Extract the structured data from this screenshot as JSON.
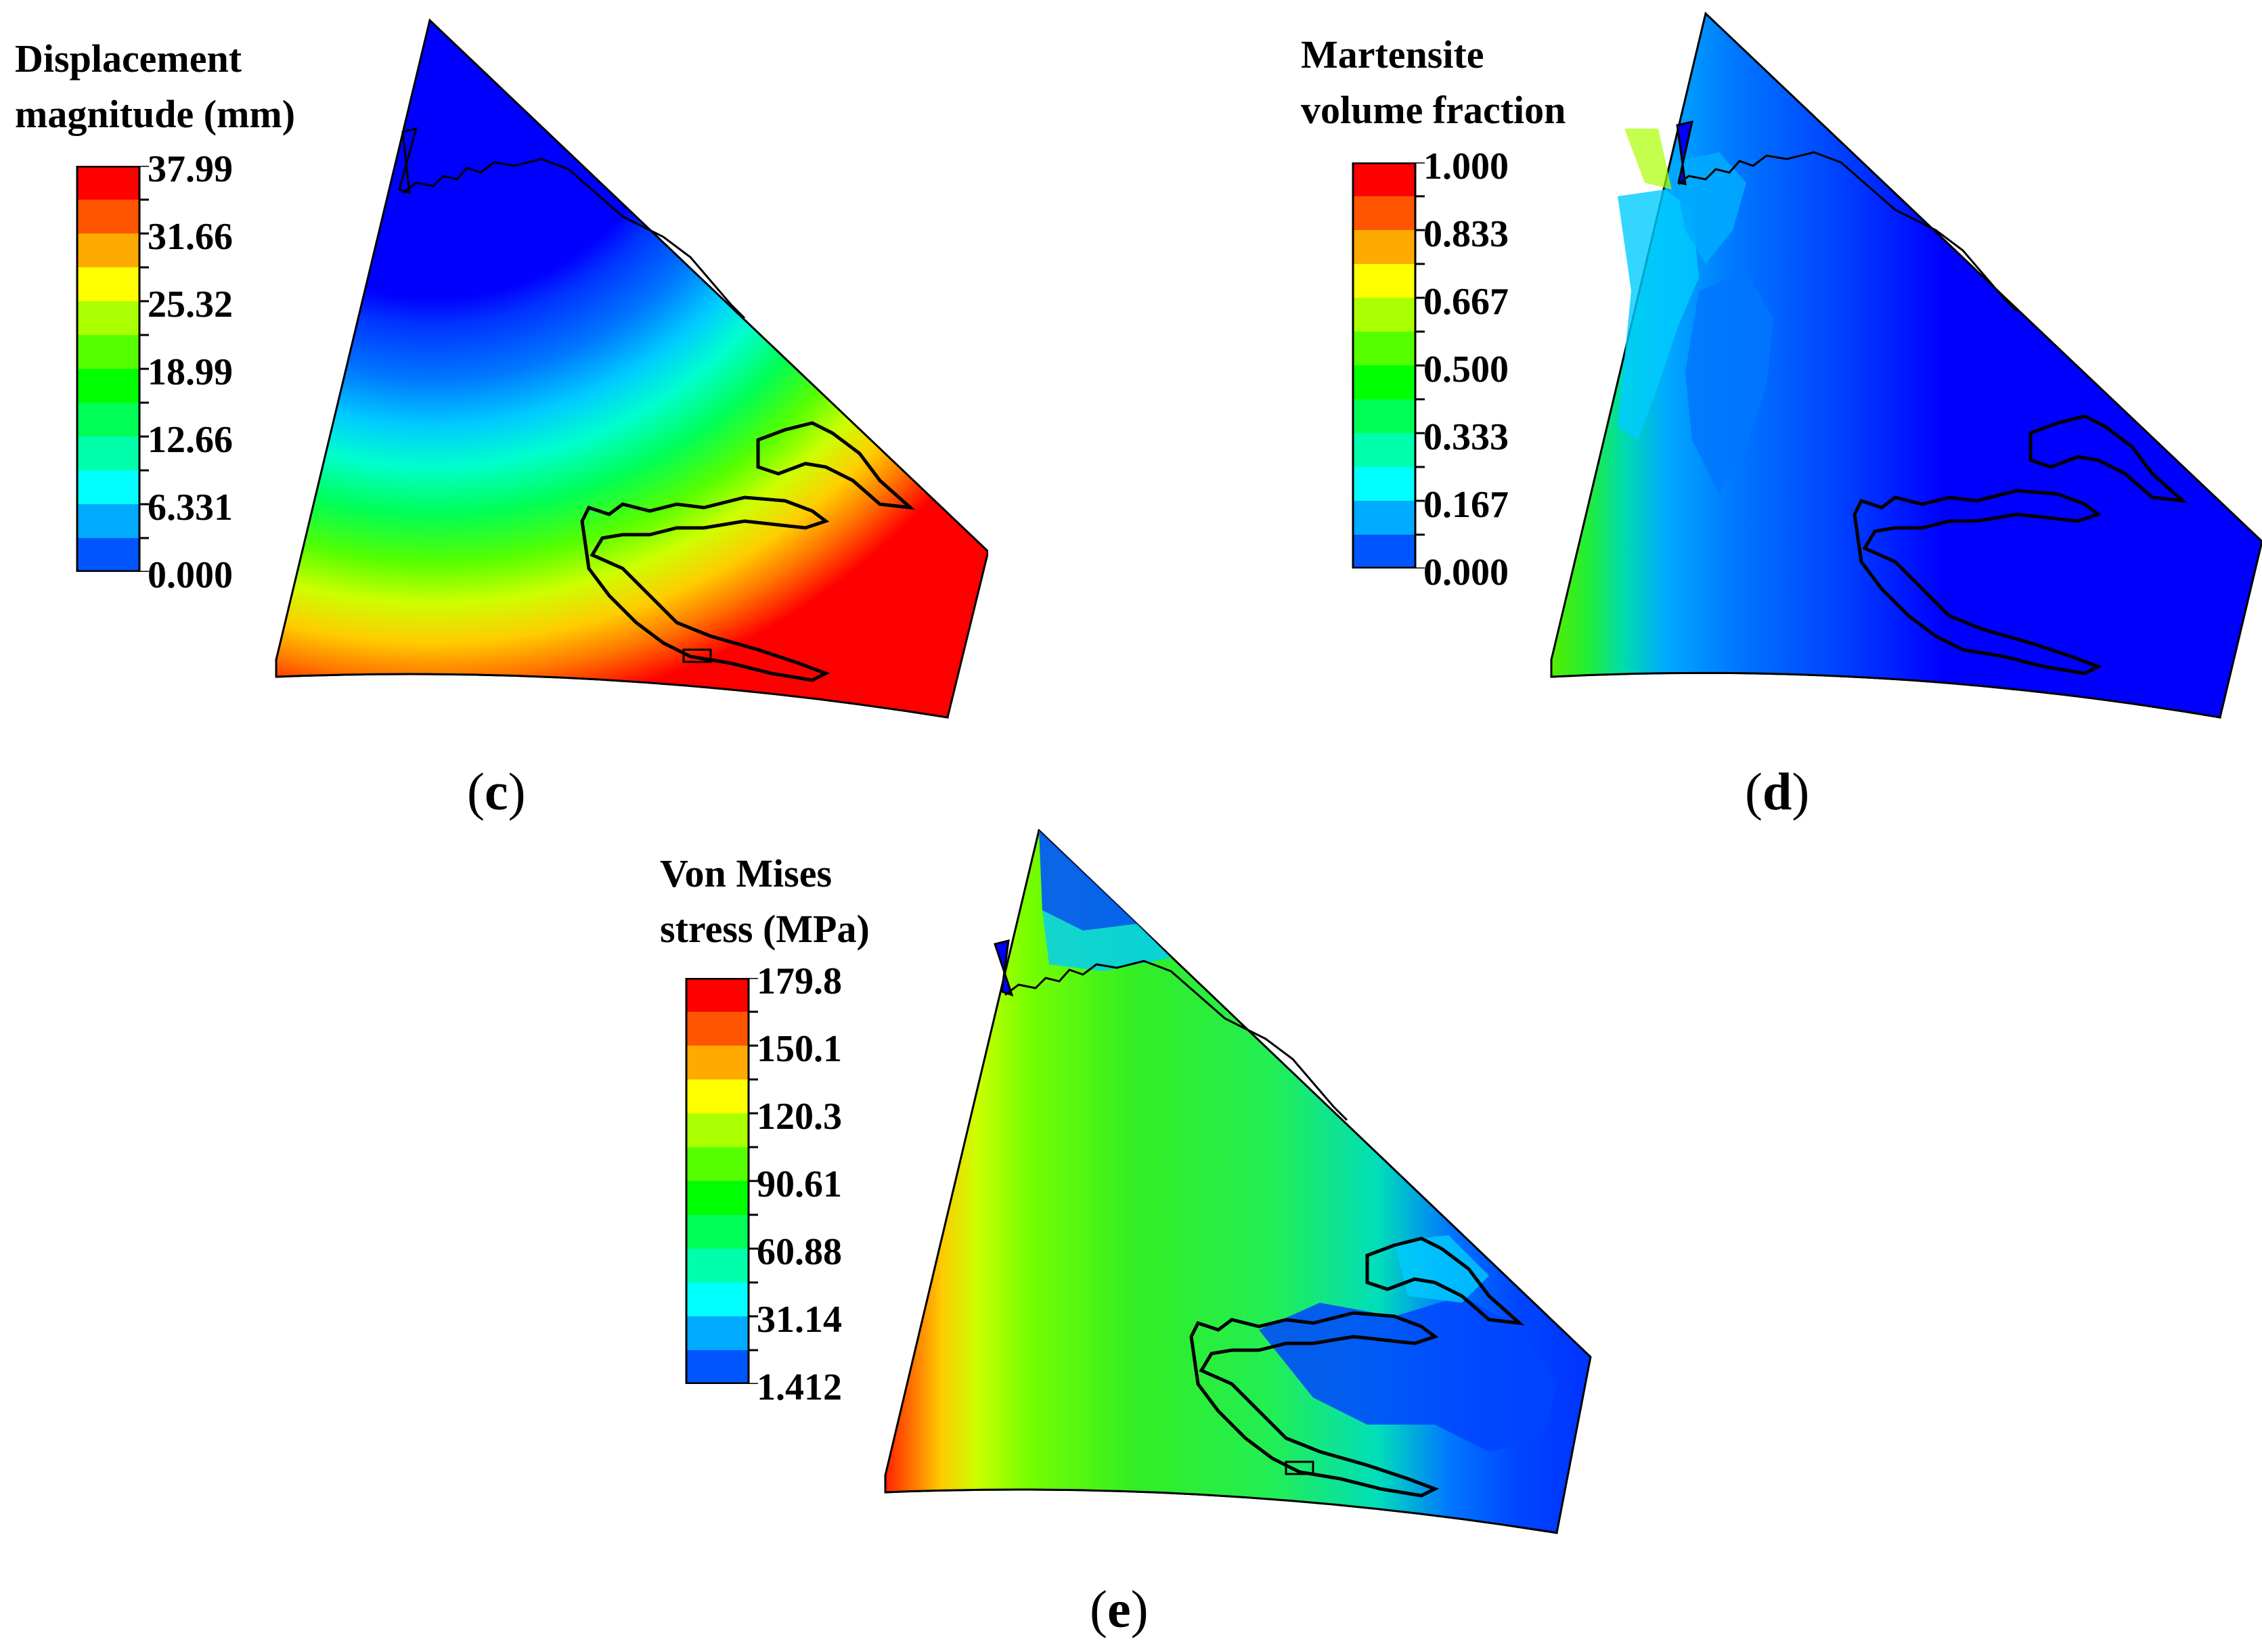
{
  "panels": [
    {
      "id": "c",
      "caption": {
        "open": "(",
        "letter": "c",
        "close": ")"
      },
      "legend": {
        "title_lines": [
          "Displacement",
          "magnitude (mm)"
        ],
        "labels": [
          "37.99",
          "31.66",
          "25.32",
          "18.99",
          "12.66",
          "6.331",
          "0.000"
        ],
        "colors": [
          "#ff0000",
          "#ff5500",
          "#ffaa00",
          "#ffff00",
          "#aaff00",
          "#55ff00",
          "#00ff00",
          "#00ff55",
          "#00ffaa",
          "#00ffff",
          "#00aaff",
          "#0055ff",
          "#0000ff"
        ]
      }
    },
    {
      "id": "d",
      "caption": {
        "open": "(",
        "letter": "d",
        "close": ")"
      },
      "legend": {
        "title_lines": [
          "Martensite",
          "volume fraction"
        ],
        "labels": [
          "1.000",
          "0.833",
          "0.667",
          "0.500",
          "0.333",
          "0.167",
          "0.000"
        ],
        "colors": [
          "#ff0000",
          "#ff5500",
          "#ffaa00",
          "#ffff00",
          "#aaff00",
          "#55ff00",
          "#00ff00",
          "#00ff55",
          "#00ffaa",
          "#00ffff",
          "#00aaff",
          "#0055ff",
          "#0000ff"
        ]
      }
    },
    {
      "id": "e",
      "caption": {
        "open": "(",
        "letter": "e",
        "close": ")"
      },
      "legend": {
        "title_lines": [
          "Von Mises",
          "stress (MPa)"
        ],
        "labels": [
          "179.8",
          "150.1",
          "120.3",
          "90.61",
          "60.88",
          "31.14",
          "1.412"
        ],
        "colors": [
          "#ff0000",
          "#ff5500",
          "#ffaa00",
          "#ffff00",
          "#aaff00",
          "#55ff00",
          "#00ff00",
          "#00ff55",
          "#00ffaa",
          "#00ffff",
          "#00aaff",
          "#0055ff",
          "#0000ff"
        ]
      }
    }
  ]
}
